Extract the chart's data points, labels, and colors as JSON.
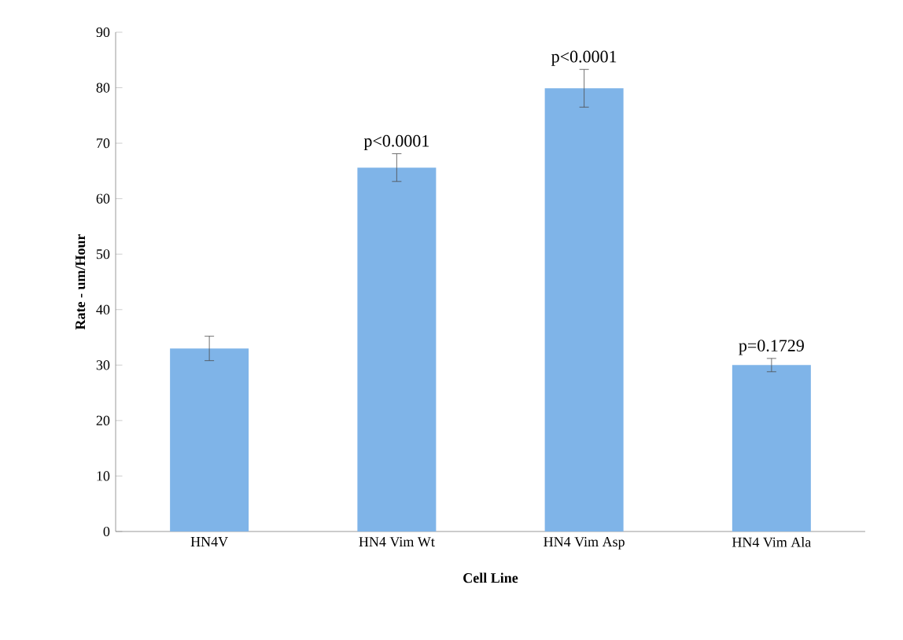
{
  "chart_data": {
    "type": "bar",
    "xlabel": "Cell Line",
    "ylabel": "Rate - um/Hour",
    "categories": [
      "HN4V",
      "HN4 Vim Wt",
      "HN4 Vim Asp",
      "HN4 Vim Ala"
    ],
    "values": [
      33.0,
      65.6,
      79.9,
      30.0
    ],
    "errors": [
      2.2,
      2.5,
      3.4,
      1.2
    ],
    "color": "#7fb4e8",
    "ylim": [
      0,
      90
    ],
    "yticks": [
      0,
      10,
      20,
      30,
      40,
      50,
      60,
      70,
      80,
      90
    ],
    "annotations": [
      {
        "text": "p<0.0001",
        "x": "HN4 Vim Wt",
        "y": 68.1
      },
      {
        "text": "p<0.0001",
        "x": "HN4 Vim Asp",
        "y": 83.3
      },
      {
        "text": "p=0.1729",
        "x": "HN4 Vim Ala",
        "y": 31.2
      }
    ]
  }
}
